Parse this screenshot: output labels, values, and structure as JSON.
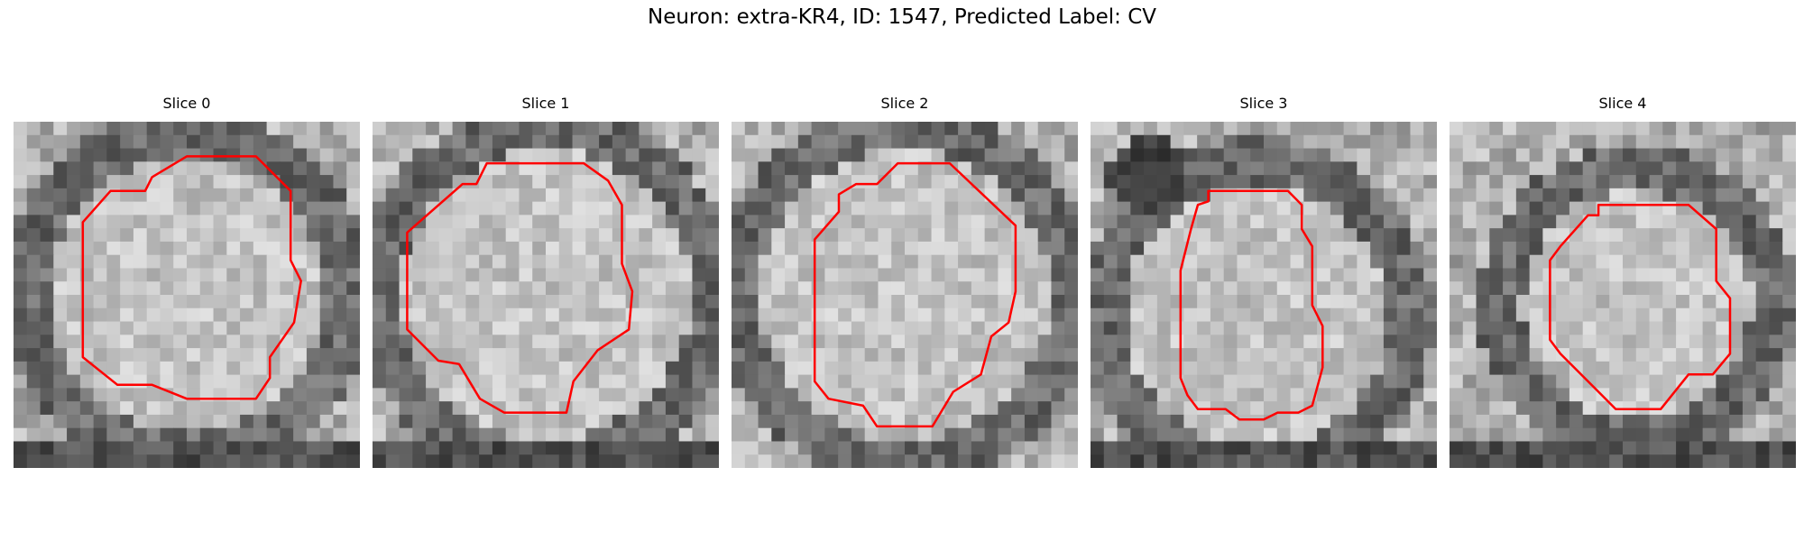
{
  "figure": {
    "title": "Neuron: extra-KR4, ID: 1547, Predicted Label: CV"
  },
  "panels": [
    {
      "title": "Slice 0",
      "contour": [
        [
          5,
          1
        ],
        [
          7,
          1
        ],
        [
          8,
          2
        ],
        [
          8,
          4
        ],
        [
          8.3,
          4.6
        ],
        [
          8.1,
          5.8
        ],
        [
          7.4,
          6.8
        ],
        [
          7.4,
          7.4
        ],
        [
          7,
          8
        ],
        [
          5,
          8
        ],
        [
          4,
          7.6
        ],
        [
          3,
          7.6
        ],
        [
          2,
          6.8
        ],
        [
          2,
          2.9
        ],
        [
          2.8,
          2
        ],
        [
          3.8,
          2
        ],
        [
          4,
          1.6
        ]
      ],
      "style": {
        "center": [
          5,
          5
        ],
        "radius": 4.6,
        "shadow": [
          0,
          0
        ],
        "lowerBand": true
      }
    },
    {
      "title": "Slice 1",
      "contour": [
        [
          3.3,
          1.2
        ],
        [
          6.1,
          1.2
        ],
        [
          6.8,
          1.7
        ],
        [
          7.2,
          2.4
        ],
        [
          7.2,
          4.1
        ],
        [
          7.5,
          4.9
        ],
        [
          7.4,
          6
        ],
        [
          6.5,
          6.6
        ],
        [
          5.8,
          7.5
        ],
        [
          5.6,
          8.4
        ],
        [
          3.8,
          8.4
        ],
        [
          3.1,
          8
        ],
        [
          2.5,
          7
        ],
        [
          1.9,
          6.9
        ],
        [
          1,
          6
        ],
        [
          1,
          3.2
        ],
        [
          2.6,
          1.8
        ],
        [
          3,
          1.8
        ]
      ],
      "style": {
        "center": [
          5,
          5
        ],
        "radius": 4.8,
        "shadow": [
          0,
          0
        ],
        "lowerBand": true
      }
    },
    {
      "title": "Slice 2",
      "contour": [
        [
          4.8,
          1.2
        ],
        [
          6.3,
          1.2
        ],
        [
          8.2,
          3
        ],
        [
          8.2,
          4.9
        ],
        [
          8,
          5.8
        ],
        [
          7.5,
          6.2
        ],
        [
          7.2,
          7.3
        ],
        [
          6.4,
          7.8
        ],
        [
          5.8,
          8.8
        ],
        [
          4.2,
          8.8
        ],
        [
          3.8,
          8.2
        ],
        [
          2.8,
          8
        ],
        [
          2.4,
          7.5
        ],
        [
          2.4,
          3.4
        ],
        [
          3.1,
          2.6
        ],
        [
          3.1,
          2.1
        ],
        [
          3.6,
          1.8
        ],
        [
          4.2,
          1.8
        ]
      ],
      "style": {
        "center": [
          5,
          5
        ],
        "radius": 4.8,
        "shadow": [
          0,
          0
        ],
        "lowerBand": false
      }
    },
    {
      "title": "Slice 3",
      "contour": [
        [
          3.4,
          2
        ],
        [
          5.7,
          2
        ],
        [
          6.1,
          2.4
        ],
        [
          6.1,
          3.1
        ],
        [
          6.4,
          3.6
        ],
        [
          6.4,
          5.3
        ],
        [
          6.7,
          5.9
        ],
        [
          6.7,
          7.1
        ],
        [
          6.4,
          8.2
        ],
        [
          6,
          8.4
        ],
        [
          5.4,
          8.4
        ],
        [
          5,
          8.6
        ],
        [
          4.3,
          8.6
        ],
        [
          3.9,
          8.3
        ],
        [
          3.1,
          8.3
        ],
        [
          2.8,
          7.9
        ],
        [
          2.6,
          7.4
        ],
        [
          2.6,
          4.3
        ],
        [
          2.9,
          3.1
        ],
        [
          3.1,
          2.4
        ],
        [
          3.4,
          2.3
        ]
      ],
      "style": {
        "center": [
          4.8,
          5.6
        ],
        "radius": 4.4,
        "shadow": [
          1.6,
          1.5
        ],
        "lowerBand": true
      }
    },
    {
      "title": "Slice 4",
      "contour": [
        [
          4.3,
          2.4
        ],
        [
          6.9,
          2.4
        ],
        [
          7.7,
          3.1
        ],
        [
          7.7,
          4.6
        ],
        [
          8.1,
          5.1
        ],
        [
          8.1,
          6.7
        ],
        [
          7.6,
          7.3
        ],
        [
          6.9,
          7.3
        ],
        [
          6.1,
          8.3
        ],
        [
          4.8,
          8.3
        ],
        [
          3.2,
          6.7
        ],
        [
          2.9,
          6.3
        ],
        [
          2.9,
          4
        ],
        [
          3.2,
          3.6
        ],
        [
          4,
          2.7
        ],
        [
          4.3,
          2.7
        ]
      ],
      "style": {
        "center": [
          5.4,
          5.3
        ],
        "radius": 3.9,
        "shadow": [
          0,
          0
        ],
        "lowerBand": true
      }
    }
  ],
  "style": {
    "contour_color": "#ff0000",
    "colormap": "gray"
  }
}
